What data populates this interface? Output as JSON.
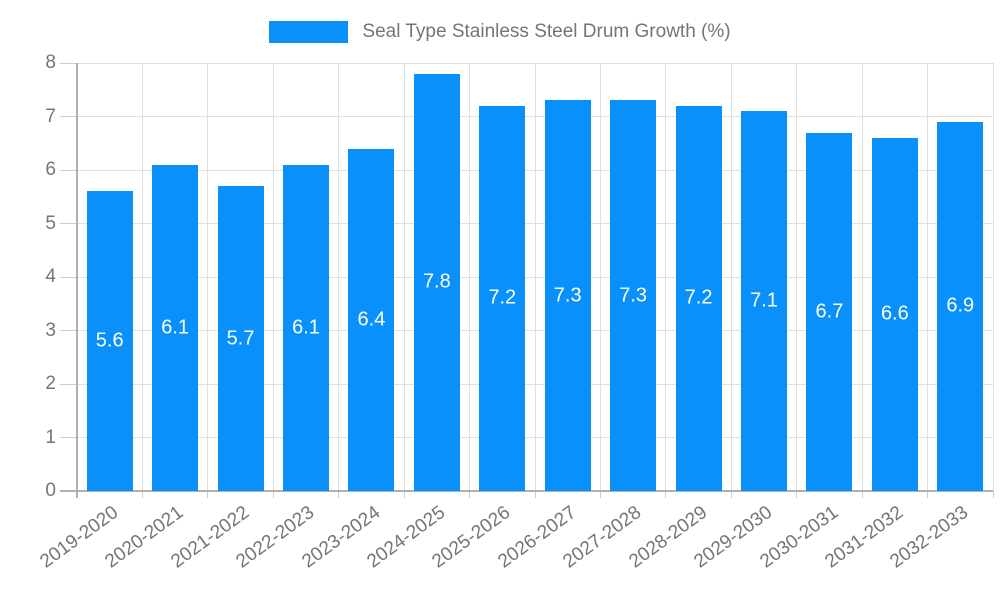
{
  "legend": {
    "label": "Seal Type Stainless Steel Drum Growth (%)"
  },
  "colors": {
    "bar": "#0a90fa",
    "axis_text": "#757575",
    "grid": "#e0e0e0",
    "axis_line": "#b0b0b0",
    "tick": "#cccccc",
    "bar_label": "#ffffff",
    "background": "#ffffff"
  },
  "chart_data": {
    "type": "bar",
    "title": "Seal Type Stainless Steel Drum Growth (%)",
    "categories": [
      "2019-2020",
      "2020-2021",
      "2021-2022",
      "2022-2023",
      "2023-2024",
      "2024-2025",
      "2025-2026",
      "2026-2027",
      "2027-2028",
      "2028-2029",
      "2029-2030",
      "2030-2031",
      "2031-2032",
      "2032-2033"
    ],
    "values": [
      5.6,
      6.1,
      5.7,
      6.1,
      6.4,
      7.8,
      7.2,
      7.3,
      7.3,
      7.2,
      7.1,
      6.7,
      6.6,
      6.9
    ],
    "xlabel": "",
    "ylabel": "",
    "ylim": [
      0,
      8
    ],
    "yticks": [
      0,
      1,
      2,
      3,
      4,
      5,
      6,
      7,
      8
    ],
    "grid": true,
    "legend_position": "top",
    "bar_value_labels": true,
    "x_label_rotation_deg": -36
  }
}
